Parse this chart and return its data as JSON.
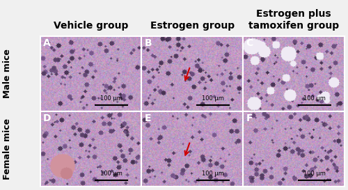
{
  "col_headers": [
    "Vehicle group",
    "Estrogen group",
    "Estrogen plus\ntamoxifen group"
  ],
  "row_labels": [
    "Male mice",
    "Female mice"
  ],
  "panel_labels": [
    [
      "A",
      "B",
      "C"
    ],
    [
      "D",
      "E",
      "F"
    ]
  ],
  "scale_bar_text": "100 μm",
  "has_arrow": [
    [
      false,
      true,
      false
    ],
    [
      false,
      true,
      false
    ]
  ],
  "arrow_color": "#cc0000",
  "border_color": "#ffffff",
  "label_color": "#ffffff",
  "header_fontsize": 10,
  "row_label_fontsize": 9,
  "panel_label_fontsize": 10,
  "scale_bar_fontsize": 6,
  "fig_width": 5.0,
  "fig_height": 2.73,
  "dpi": 100
}
